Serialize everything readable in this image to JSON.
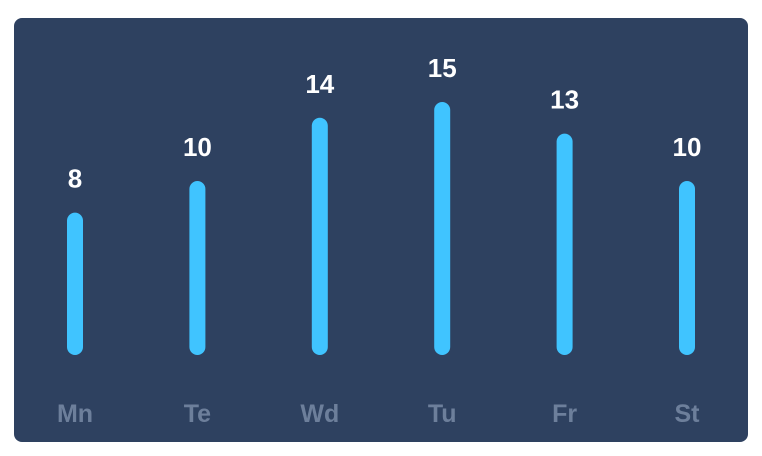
{
  "colors": {
    "background": "#ffffff",
    "card": "#2e4160",
    "bar": "#40c4ff",
    "value_text": "#ffffff",
    "day_text": "#6d7f9b"
  },
  "chart_data": {
    "type": "bar",
    "categories": [
      "Mn",
      "Te",
      "Wd",
      "Tu",
      "Fr",
      "St"
    ],
    "values": [
      8,
      10,
      14,
      15,
      13,
      10
    ],
    "title": "",
    "xlabel": "",
    "ylabel": "",
    "ylim": [
      0,
      15
    ],
    "grid": false,
    "legend": "none",
    "data_labels": true
  }
}
